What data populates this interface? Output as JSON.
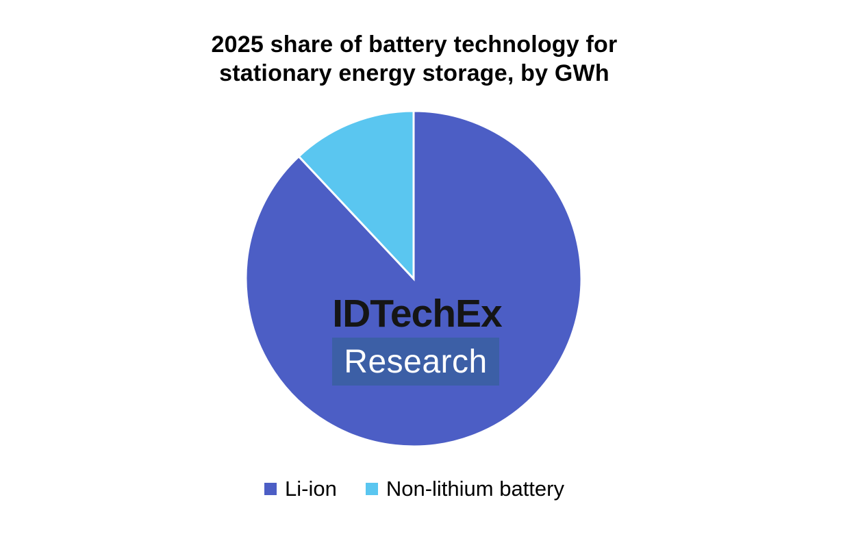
{
  "page": {
    "background": "#FFFFFF"
  },
  "header": {
    "title_line1": "2025 share of battery technology for",
    "title_line2": "stationary energy storage, by GWh"
  },
  "watermark": {
    "name": "IDTechEx",
    "sub": "Research",
    "box_color": "#3C5FA6",
    "name_color": "#151515",
    "sub_color": "#FFFFFF"
  },
  "chart_data": {
    "type": "pie",
    "title": "2025 share of battery technology for stationary energy storage, by GWh",
    "value_unit": "percent share of GWh",
    "categories": [
      "Li-ion",
      "Non-lithium battery"
    ],
    "values": [
      88,
      12
    ],
    "colors": [
      "#4C5EC5",
      "#5AC6F0"
    ],
    "start_angle_deg": 0,
    "direction": "clockwise",
    "slice_border": {
      "color": "#FFFFFF",
      "width": 3
    },
    "legend_position": "bottom",
    "data_labels": false,
    "watermark_text": "IDTechEx Research"
  }
}
